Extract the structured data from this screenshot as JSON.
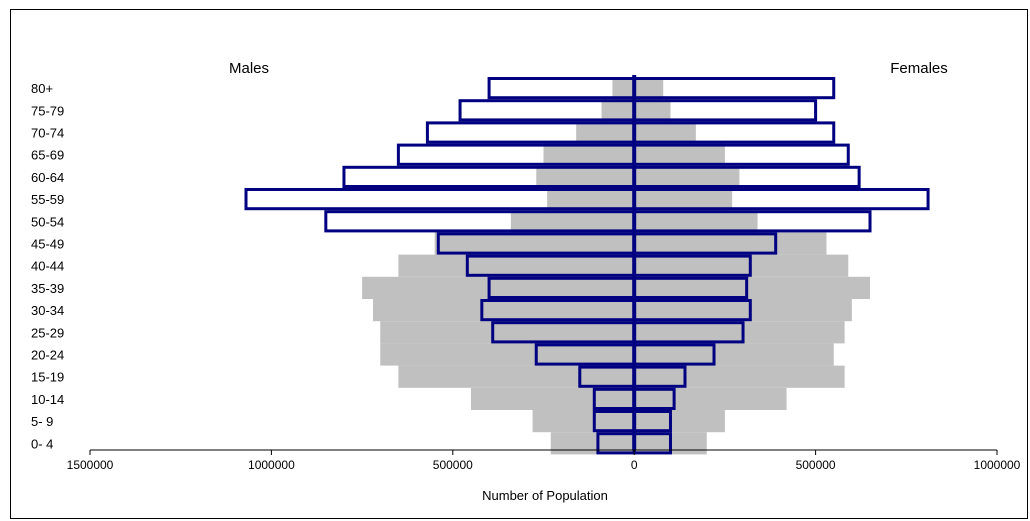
{
  "chart_data": {
    "type": "bar",
    "orientation": "horizontal",
    "layout": "population-pyramid",
    "left_label": "Males",
    "right_label": "Females",
    "xlabel": "Number of Population",
    "ylabel": "",
    "xlim": [
      -1500000,
      1000000
    ],
    "x_ticks": [
      {
        "value": -1500000,
        "label": "1500000"
      },
      {
        "value": -1000000,
        "label": "1000000"
      },
      {
        "value": -500000,
        "label": "500000"
      },
      {
        "value": 0,
        "label": "0"
      },
      {
        "value": 500000,
        "label": "500000"
      },
      {
        "value": 1000000,
        "label": "1000000"
      }
    ],
    "categories": [
      "80+",
      "75-79",
      "70-74",
      "65-69",
      "60-64",
      "55-59",
      "50-54",
      "45-49",
      "40-44",
      "35-39",
      "30-34",
      "25-29",
      "20-24",
      "15-19",
      "10-14",
      "5- 9",
      "0- 4"
    ],
    "series": [
      {
        "style": "gray-filled",
        "color": "#c0c0c0",
        "males": [
          60000,
          90000,
          160000,
          250000,
          270000,
          240000,
          340000,
          550000,
          650000,
          750000,
          720000,
          700000,
          700000,
          650000,
          450000,
          280000,
          230000
        ],
        "females": [
          80000,
          100000,
          170000,
          250000,
          290000,
          270000,
          340000,
          530000,
          590000,
          650000,
          600000,
          580000,
          550000,
          580000,
          420000,
          250000,
          200000
        ]
      },
      {
        "style": "navy-outlined",
        "color": "#000080",
        "males": [
          400000,
          480000,
          570000,
          650000,
          800000,
          1070000,
          850000,
          540000,
          460000,
          400000,
          420000,
          390000,
          270000,
          150000,
          110000,
          110000,
          100000
        ],
        "females": [
          550000,
          500000,
          550000,
          590000,
          620000,
          810000,
          650000,
          390000,
          320000,
          310000,
          320000,
          300000,
          220000,
          140000,
          110000,
          100000,
          100000
        ]
      }
    ],
    "grid": false,
    "legend": "none"
  }
}
